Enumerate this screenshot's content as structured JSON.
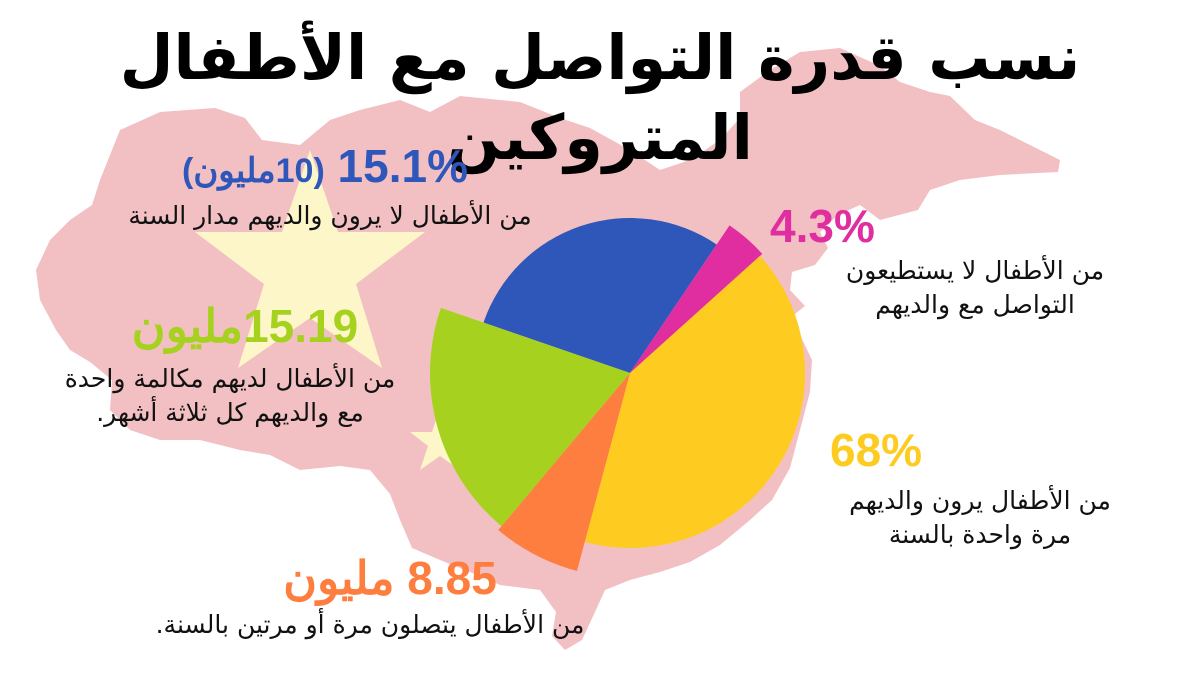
{
  "title": "نسب قدرة التواصل مع الأطفال المتروكين",
  "colors": {
    "map": "#f2c0c3",
    "star": "#fdf6c9",
    "blue": "#2f57b9",
    "pink": "#e02d9f",
    "yellow": "#fecb21",
    "orange": "#fd7e3f",
    "green": "#a6d21f"
  },
  "callouts": {
    "blue": {
      "value": "15.1%",
      "extra": "(10مليون)",
      "desc_lines": [
        "من الأطفال لا يرون والديهم مدار السنة"
      ]
    },
    "pink": {
      "value": "4.3%",
      "desc_lines": [
        "من الأطفال لا يستطيعون",
        "التواصل مع  والديهم"
      ]
    },
    "green": {
      "value": "15.19مليون",
      "desc_lines": [
        "من الأطفال لديهم مكالمة واحدة",
        "مع والديهم كل ثلاثة أشهر."
      ]
    },
    "yellow": {
      "value": "68%",
      "desc_lines": [
        "من الأطفال يرون والديهم",
        "مرة واحدة بالسنة"
      ]
    },
    "orange": {
      "value": "8.85 مليون",
      "desc_lines": [
        "من الأطفال يتصلون مرة أو مرتين بالسنة."
      ]
    }
  },
  "chart_data": {
    "type": "pie",
    "title": "نسب قدرة التواصل مع الأطفال المتروكين",
    "center": [
      630,
      373
    ],
    "slices": [
      {
        "label": "من الأطفال لا يرون والديهم مدار السنة",
        "value_label": "15.1% (10مليون)",
        "percent": 15.1,
        "color": "#2f57b9",
        "start_deg": 289,
        "end_deg": 394,
        "radius": 155
      },
      {
        "label": "من الأطفال لا يستطيعون التواصل مع والديهم",
        "value_label": "4.3%",
        "percent": 4.3,
        "color": "#e02d9f",
        "start_deg": 34,
        "end_deg": 48,
        "radius": 178
      },
      {
        "label": "من الأطفال يرون والديهم مرة واحدة بالسنة",
        "value_label": "68%",
        "percent": 68,
        "color": "#fecb21",
        "start_deg": 48,
        "end_deg": 195,
        "radius": 175
      },
      {
        "label": "من الأطفال يتصلون مرة أو مرتين بالسنة.",
        "value_label": "8.85 مليون",
        "millions": 8.85,
        "color": "#fd7e3f",
        "start_deg": 195,
        "end_deg": 220,
        "radius": 205
      },
      {
        "label": "من الأطفال لديهم مكالمة واحدة مع والديهم كل ثلاثة أشهر.",
        "value_label": "15.19مليون",
        "millions": 15.19,
        "color": "#a6d21f",
        "start_deg": 220,
        "end_deg": 289,
        "radius": 200
      }
    ],
    "legend": "none (direct labels)"
  }
}
